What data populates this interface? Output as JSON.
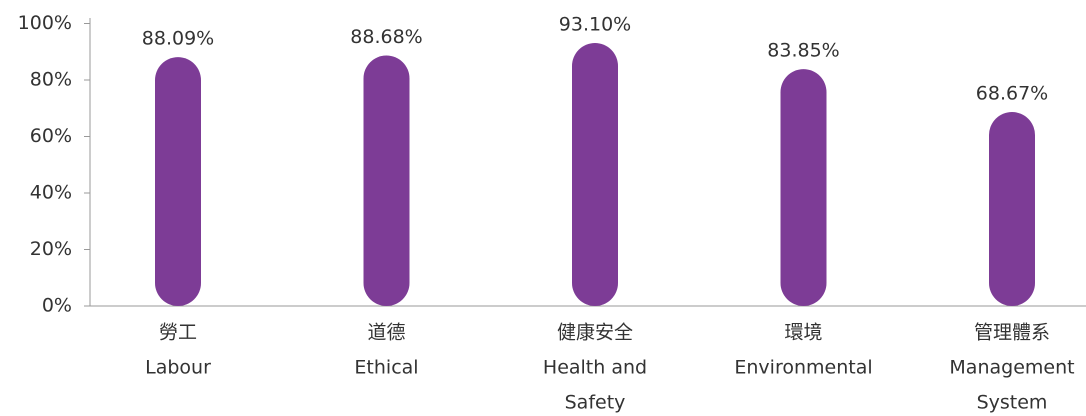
{
  "chart_data": {
    "type": "bar",
    "categories": [
      [
        "勞工",
        "Labour"
      ],
      [
        "道德",
        "Ethical"
      ],
      [
        "健康安全",
        "Health and",
        "Safety"
      ],
      [
        "環境",
        "Environmental"
      ],
      [
        "管理體系",
        "Management",
        "System"
      ]
    ],
    "values": [
      88.09,
      88.68,
      93.1,
      83.85,
      68.67
    ],
    "value_labels": [
      "88.09%",
      "88.68%",
      "93.10%",
      "83.85%",
      "68.67%"
    ],
    "color": "#7d3c96",
    "ylim": [
      0,
      100
    ],
    "yticks": [
      {
        "value": 0,
        "label": "0%"
      },
      {
        "value": 20,
        "label": "20%"
      },
      {
        "value": 40,
        "label": "40%"
      },
      {
        "value": 60,
        "label": "60%"
      },
      {
        "value": 80,
        "label": "80%"
      },
      {
        "value": 100,
        "label": "100%"
      }
    ]
  }
}
